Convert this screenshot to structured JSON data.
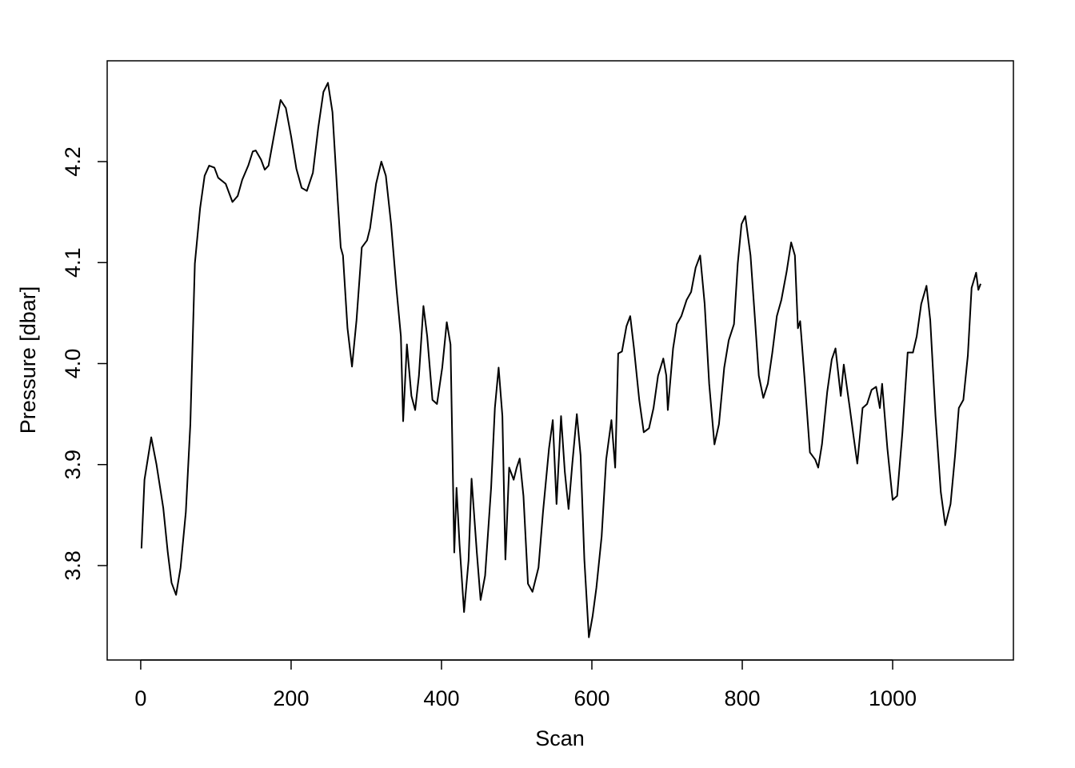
{
  "chart_data": {
    "type": "line",
    "x_label": "Scan",
    "y_label": "Pressure [dbar]",
    "xlim": [
      -44.6,
      1160.6
    ],
    "ylim": [
      3.7065,
      4.2998
    ],
    "xticks": [
      0,
      200,
      400,
      600,
      800,
      1000
    ],
    "yticks": [
      3.8,
      3.9,
      {
        "value": 4,
        "label": "4.0"
      },
      4.1,
      4.2
    ],
    "series": [
      {
        "color": "#000000",
        "x": [
          1,
          5,
          14,
          21,
          30,
          36,
          41,
          47,
          53,
          60,
          66,
          72,
          79,
          85,
          91,
          98,
          103,
          113,
          122,
          129,
          135,
          143,
          149,
          153,
          160,
          165,
          170,
          179,
          186,
          193,
          200,
          207,
          214,
          221,
          229,
          236,
          243,
          249,
          255,
          262,
          266,
          269,
          275,
          281,
          287,
          294,
          301,
          305,
          313,
          320,
          326,
          333,
          340,
          346,
          349,
          354,
          360,
          365,
          370,
          376,
          381,
          388,
          394,
          401,
          407,
          412,
          417,
          420,
          424,
          430,
          436,
          440,
          447,
          452,
          458,
          466,
          471,
          476,
          481,
          485,
          490,
          496,
          500,
          504,
          509,
          515,
          521,
          529,
          535,
          543,
          548,
          553,
          559,
          564,
          569,
          574,
          580,
          585,
          590,
          596,
          601,
          606,
          613,
          619,
          626,
          631,
          635,
          640,
          646,
          651,
          656,
          663,
          669,
          676,
          682,
          688,
          695,
          699,
          701,
          708,
          713,
          719,
          726,
          732,
          738,
          744,
          750,
          756,
          763,
          769,
          776,
          782,
          789,
          794,
          799,
          804,
          811,
          817,
          822,
          828,
          834,
          840,
          846,
          852,
          859,
          865,
          870,
          874,
          877,
          883,
          890,
          897,
          901,
          906,
          913,
          919,
          924,
          931,
          935,
          943,
          948,
          953,
          960,
          966,
          972,
          978,
          983,
          986,
          993,
          1000,
          1006,
          1013,
          1020,
          1027,
          1032,
          1038,
          1045,
          1050,
          1057,
          1064,
          1070,
          1077,
          1083,
          1088,
          1094,
          1100,
          1105,
          1111,
          1114,
          1117
        ],
        "values": [
          3.817,
          3.885,
          3.927,
          3.9,
          3.857,
          3.813,
          3.783,
          3.771,
          3.798,
          3.853,
          3.94,
          4.099,
          4.154,
          4.186,
          4.196,
          4.194,
          4.184,
          4.178,
          4.16,
          4.166,
          4.182,
          4.196,
          4.21,
          4.211,
          4.202,
          4.192,
          4.196,
          4.233,
          4.261,
          4.253,
          4.225,
          4.193,
          4.174,
          4.171,
          4.189,
          4.233,
          4.269,
          4.278,
          4.249,
          4.162,
          4.115,
          4.107,
          4.035,
          3.997,
          4.043,
          4.115,
          4.122,
          4.134,
          4.178,
          4.2,
          4.186,
          4.138,
          4.075,
          4.027,
          3.943,
          4.019,
          3.968,
          3.954,
          3.988,
          4.057,
          4.027,
          3.964,
          3.96,
          3.996,
          4.041,
          4.019,
          3.813,
          3.877,
          3.821,
          3.754,
          3.805,
          3.886,
          3.813,
          3.766,
          3.79,
          3.877,
          3.956,
          3.996,
          3.948,
          3.806,
          3.897,
          3.885,
          3.897,
          3.906,
          3.869,
          3.782,
          3.774,
          3.798,
          3.853,
          3.916,
          3.944,
          3.861,
          3.948,
          3.893,
          3.856,
          3.901,
          3.95,
          3.909,
          3.806,
          3.729,
          3.75,
          3.778,
          3.829,
          3.905,
          3.944,
          3.897,
          4.01,
          4.012,
          4.037,
          4.047,
          4.015,
          3.964,
          3.932,
          3.936,
          3.956,
          3.988,
          4.005,
          3.988,
          3.954,
          4.015,
          4.039,
          4.047,
          4.063,
          4.071,
          4.095,
          4.107,
          4.059,
          3.98,
          3.92,
          3.94,
          3.996,
          4.023,
          4.039,
          4.099,
          4.138,
          4.146,
          4.107,
          4.043,
          3.988,
          3.966,
          3.98,
          4.011,
          4.047,
          4.063,
          4.091,
          4.12,
          4.107,
          4.035,
          4.042,
          3.984,
          3.912,
          3.905,
          3.897,
          3.92,
          3.972,
          4.004,
          4.015,
          3.968,
          3.999,
          3.956,
          3.928,
          3.901,
          3.956,
          3.96,
          3.974,
          3.977,
          3.956,
          3.98,
          3.916,
          3.865,
          3.869,
          3.932,
          4.011,
          4.011,
          4.027,
          4.059,
          4.077,
          4.043,
          3.948,
          3.873,
          3.84,
          3.861,
          3.909,
          3.956,
          3.964,
          4.008,
          4.075,
          4.09,
          4.073,
          4.079
        ]
      }
    ]
  }
}
